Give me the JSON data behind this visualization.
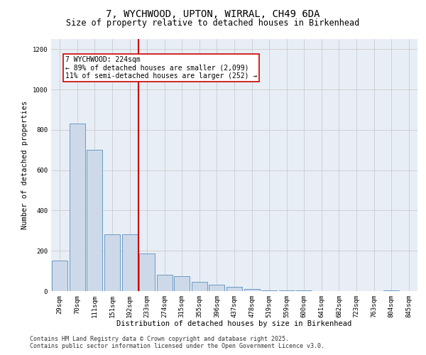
{
  "title_line1": "7, WYCHWOOD, UPTON, WIRRAL, CH49 6DA",
  "title_line2": "Size of property relative to detached houses in Birkenhead",
  "xlabel": "Distribution of detached houses by size in Birkenhead",
  "ylabel": "Number of detached properties",
  "categories": [
    "29sqm",
    "70sqm",
    "111sqm",
    "151sqm",
    "192sqm",
    "233sqm",
    "274sqm",
    "315sqm",
    "355sqm",
    "396sqm",
    "437sqm",
    "478sqm",
    "519sqm",
    "559sqm",
    "600sqm",
    "641sqm",
    "682sqm",
    "723sqm",
    "763sqm",
    "804sqm",
    "845sqm"
  ],
  "values": [
    150,
    830,
    700,
    280,
    280,
    185,
    80,
    75,
    45,
    30,
    20,
    10,
    5,
    3,
    2,
    1,
    1,
    0,
    0,
    5,
    0
  ],
  "bar_color": "#cdd9e8",
  "bar_edge_color": "#6b9ac4",
  "vline_color": "#cc0000",
  "annotation_text": "7 WYCHWOOD: 224sqm\n← 89% of detached houses are smaller (2,099)\n11% of semi-detached houses are larger (252) →",
  "annotation_box_color": "#cc0000",
  "ylim": [
    0,
    1250
  ],
  "yticks": [
    0,
    200,
    400,
    600,
    800,
    1000,
    1200
  ],
  "grid_color": "#cccccc",
  "background_color": "#e8eef5",
  "footer_line1": "Contains HM Land Registry data © Crown copyright and database right 2025.",
  "footer_line2": "Contains public sector information licensed under the Open Government Licence v3.0.",
  "title_fontsize": 10,
  "subtitle_fontsize": 8.5,
  "axis_label_fontsize": 7.5,
  "tick_fontsize": 6.5,
  "annotation_fontsize": 7,
  "footer_fontsize": 6
}
